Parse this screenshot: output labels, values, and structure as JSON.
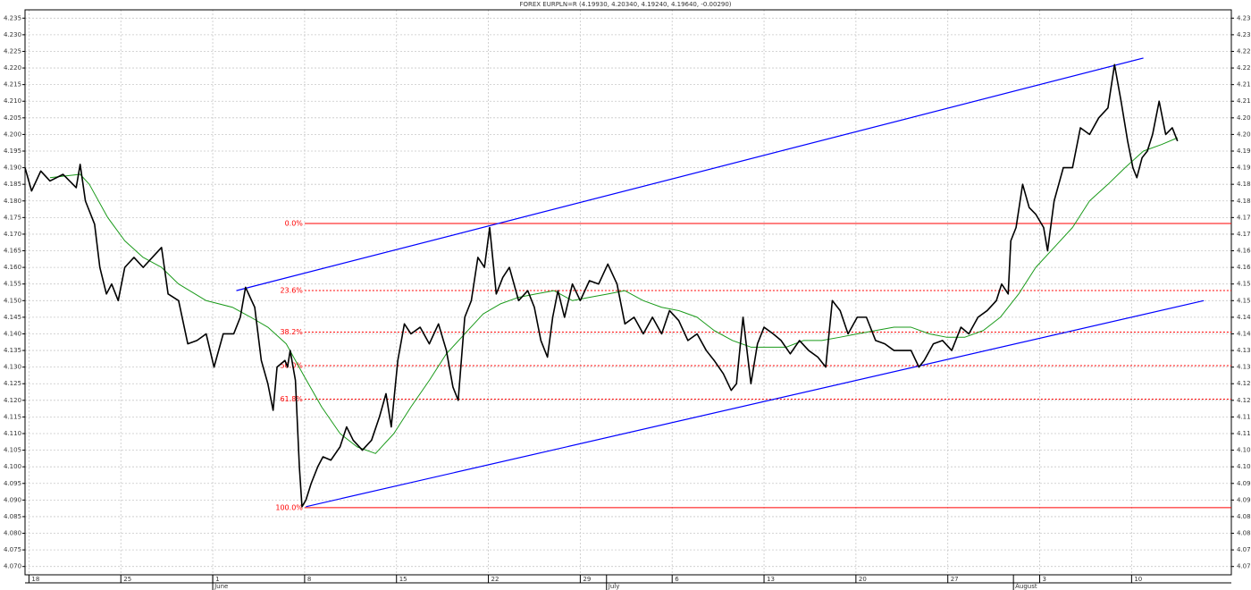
{
  "chart_data": {
    "type": "line",
    "title": "FOREX EURPLN=R (4.19930, 4.20340, 4.19240, 4.19640, -0.00290)",
    "grid": true,
    "xlim": [
      -0.3,
      91.6
    ],
    "ylim": [
      4.0675,
      4.2375
    ],
    "xticks": [
      {
        "value": 0,
        "label": "18"
      },
      {
        "value": 7,
        "label": "25"
      },
      {
        "value": 14,
        "label": "1"
      },
      {
        "value": 21,
        "label": "8"
      },
      {
        "value": 28,
        "label": "15"
      },
      {
        "value": 35,
        "label": "22"
      },
      {
        "value": 42,
        "label": "29"
      },
      {
        "value": 49,
        "label": "6"
      },
      {
        "value": 56,
        "label": "13"
      },
      {
        "value": 63,
        "label": "20"
      },
      {
        "value": 70,
        "label": "27"
      },
      {
        "value": 77,
        "label": "3"
      },
      {
        "value": 84,
        "label": "10"
      }
    ],
    "month_labels": [
      {
        "value": 14,
        "label": "June"
      },
      {
        "value": 44,
        "label": "July"
      },
      {
        "value": 75,
        "label": "August"
      }
    ],
    "yticks": [
      {
        "value": 4.07,
        "label": "4.070"
      },
      {
        "value": 4.075,
        "label": "4.075"
      },
      {
        "value": 4.08,
        "label": "4.080"
      },
      {
        "value": 4.085,
        "label": "4.085"
      },
      {
        "value": 4.09,
        "label": "4.090"
      },
      {
        "value": 4.095,
        "label": "4.095"
      },
      {
        "value": 4.1,
        "label": "4.100"
      },
      {
        "value": 4.105,
        "label": "4.105"
      },
      {
        "value": 4.11,
        "label": "4.110"
      },
      {
        "value": 4.115,
        "label": "4.115"
      },
      {
        "value": 4.12,
        "label": "4.120"
      },
      {
        "value": 4.125,
        "label": "4.125"
      },
      {
        "value": 4.13,
        "label": "4.130"
      },
      {
        "value": 4.135,
        "label": "4.135"
      },
      {
        "value": 4.14,
        "label": "4.140"
      },
      {
        "value": 4.145,
        "label": "4.145"
      },
      {
        "value": 4.15,
        "label": "4.150"
      },
      {
        "value": 4.155,
        "label": "4.155"
      },
      {
        "value": 4.16,
        "label": "4.160"
      },
      {
        "value": 4.165,
        "label": "4.165"
      },
      {
        "value": 4.17,
        "label": "4.170"
      },
      {
        "value": 4.175,
        "label": "4.175"
      },
      {
        "value": 4.18,
        "label": "4.180"
      },
      {
        "value": 4.185,
        "label": "4.185"
      },
      {
        "value": 4.19,
        "label": "4.190"
      },
      {
        "value": 4.195,
        "label": "4.195"
      },
      {
        "value": 4.2,
        "label": "4.200"
      },
      {
        "value": 4.205,
        "label": "4.205"
      },
      {
        "value": 4.21,
        "label": "4.210"
      },
      {
        "value": 4.215,
        "label": "4.215"
      },
      {
        "value": 4.22,
        "label": "4.220"
      },
      {
        "value": 4.225,
        "label": "4.225"
      },
      {
        "value": 4.23,
        "label": "4.230"
      },
      {
        "value": 4.235,
        "label": "4.235"
      }
    ],
    "series": [
      {
        "color": "#000000",
        "x": [
          -0.3,
          0.2,
          0.9,
          1.6,
          2.6,
          3.6,
          3.9,
          4.3,
          5.0,
          5.4,
          5.9,
          6.3,
          6.8,
          7.3,
          8.0,
          8.7,
          9.4,
          10.1,
          10.6,
          11.4,
          12.1,
          12.8,
          13.5,
          14.1,
          14.8,
          15.6,
          16.1,
          16.5,
          17.2,
          17.7,
          18.2,
          18.6,
          18.9,
          19.5,
          19.7,
          19.9,
          20.3,
          20.6,
          20.8,
          21.1,
          21.5,
          22.0,
          22.4,
          23.0,
          23.7,
          24.2,
          24.7,
          25.4,
          26.1,
          26.7,
          27.2,
          27.6,
          28.1,
          28.6,
          29.1,
          29.8,
          30.5,
          31.2,
          31.8,
          32.3,
          32.7,
          33.2,
          33.7,
          34.2,
          34.7,
          35.1,
          35.6,
          36.1,
          36.6,
          37.3,
          38.0,
          38.5,
          39.0,
          39.5,
          39.9,
          40.3,
          40.8,
          41.4,
          42.0,
          42.7,
          43.4,
          44.1,
          44.8,
          45.4,
          46.1,
          46.8,
          47.5,
          48.2,
          48.8,
          49.5,
          50.2,
          50.9,
          51.6,
          52.2,
          52.9,
          53.5,
          53.9,
          54.4,
          55.0,
          55.5,
          56.0,
          56.7,
          57.3,
          58.0,
          58.7,
          59.4,
          60.1,
          60.7,
          61.2,
          61.8,
          62.4,
          63.1,
          63.8,
          64.5,
          65.2,
          65.9,
          66.5,
          67.2,
          67.8,
          68.2,
          68.9,
          69.6,
          70.3,
          71.0,
          71.6,
          72.3,
          73.0,
          73.7,
          74.1,
          74.6,
          74.8,
          75.2,
          75.7,
          76.2,
          76.7,
          77.3,
          77.6,
          78.1,
          78.8,
          79.5,
          80.1,
          80.8,
          81.5,
          82.2,
          82.7,
          83.2,
          83.7,
          84.1,
          84.4,
          84.8,
          85.2,
          85.6,
          86.1,
          86.6,
          87.1,
          87.5
        ],
        "values": [
          4.19,
          4.183,
          4.189,
          4.186,
          4.188,
          4.184,
          4.191,
          4.18,
          4.173,
          4.16,
          4.152,
          4.155,
          4.15,
          4.16,
          4.163,
          4.16,
          4.163,
          4.166,
          4.152,
          4.15,
          4.137,
          4.138,
          4.14,
          4.13,
          4.14,
          4.14,
          4.145,
          4.154,
          4.148,
          4.132,
          4.125,
          4.117,
          4.13,
          4.132,
          4.13,
          4.135,
          4.126,
          4.1,
          4.088,
          4.09,
          4.095,
          4.1,
          4.103,
          4.102,
          4.106,
          4.112,
          4.108,
          4.105,
          4.108,
          4.115,
          4.122,
          4.112,
          4.132,
          4.143,
          4.14,
          4.142,
          4.137,
          4.143,
          4.135,
          4.124,
          4.12,
          4.145,
          4.15,
          4.163,
          4.16,
          4.172,
          4.152,
          4.157,
          4.16,
          4.15,
          4.153,
          4.148,
          4.138,
          4.133,
          4.145,
          4.153,
          4.145,
          4.155,
          4.15,
          4.156,
          4.155,
          4.161,
          4.155,
          4.143,
          4.145,
          4.14,
          4.145,
          4.14,
          4.147,
          4.144,
          4.138,
          4.14,
          4.135,
          4.132,
          4.128,
          4.123,
          4.125,
          4.145,
          4.125,
          4.137,
          4.142,
          4.14,
          4.138,
          4.134,
          4.138,
          4.135,
          4.133,
          4.13,
          4.15,
          4.147,
          4.14,
          4.145,
          4.145,
          4.138,
          4.137,
          4.135,
          4.135,
          4.135,
          4.13,
          4.132,
          4.137,
          4.138,
          4.135,
          4.142,
          4.14,
          4.145,
          4.147,
          4.15,
          4.155,
          4.152,
          4.168,
          4.172,
          4.185,
          4.178,
          4.176,
          4.172,
          4.165,
          4.18,
          4.19,
          4.19,
          4.202,
          4.2,
          4.205,
          4.208,
          4.221,
          4.21,
          4.198,
          4.19,
          4.187,
          4.193,
          4.195,
          4.2,
          4.21,
          4.2,
          4.202,
          4.198
        ]
      },
      {
        "color": "#1a9a1a",
        "x": [
          1.6,
          3.9,
          4.6,
          6.0,
          7.3,
          8.7,
          10.1,
          11.4,
          13.5,
          15.5,
          16.9,
          18.2,
          19.6,
          21.0,
          22.3,
          23.7,
          25.0,
          26.4,
          27.8,
          29.1,
          30.5,
          31.8,
          33.2,
          34.6,
          35.9,
          37.3,
          38.6,
          40.0,
          41.4,
          42.7,
          44.1,
          45.4,
          46.8,
          48.2,
          49.5,
          50.9,
          52.2,
          53.6,
          55.0,
          56.3,
          57.7,
          59.0,
          60.4,
          61.8,
          63.1,
          64.5,
          65.9,
          67.2,
          68.6,
          69.9,
          71.3,
          72.7,
          74.0,
          75.4,
          76.7,
          78.1,
          79.5,
          80.8,
          82.2,
          83.5,
          84.9,
          86.3,
          87.5
        ],
        "values": [
          4.187,
          4.188,
          4.185,
          4.175,
          4.168,
          4.163,
          4.16,
          4.155,
          4.15,
          4.148,
          4.145,
          4.142,
          4.137,
          4.127,
          4.118,
          4.11,
          4.106,
          4.104,
          4.11,
          4.118,
          4.126,
          4.134,
          4.14,
          4.146,
          4.149,
          4.151,
          4.152,
          4.153,
          4.15,
          4.151,
          4.152,
          4.153,
          4.15,
          4.148,
          4.147,
          4.145,
          4.141,
          4.138,
          4.136,
          4.136,
          4.136,
          4.138,
          4.138,
          4.139,
          4.14,
          4.141,
          4.142,
          4.142,
          4.14,
          4.139,
          4.139,
          4.141,
          4.145,
          4.152,
          4.16,
          4.166,
          4.172,
          4.18,
          4.185,
          4.19,
          4.195,
          4.197,
          4.199
        ]
      }
    ],
    "trend_lines": [
      {
        "color": "#0000ff",
        "x": [
          15.8,
          84.9
        ],
        "y": [
          4.153,
          4.223
        ]
      },
      {
        "color": "#0000ff",
        "x": [
          21.1,
          89.5
        ],
        "y": [
          4.088,
          4.15
        ]
      }
    ],
    "fibonacci": {
      "color": "#ff0000",
      "x_start": 21.0,
      "high": 4.1732,
      "low": 4.0877,
      "levels": [
        {
          "value": 0,
          "label": "0.0%",
          "style": "solid"
        },
        {
          "value": 23.6,
          "label": "23.6%",
          "style": "dotted"
        },
        {
          "value": 38.2,
          "label": "38.2%",
          "style": "dotted"
        },
        {
          "value": 50,
          "label": "50.0%",
          "style": "dotted"
        },
        {
          "value": 61.8,
          "label": "61.8%",
          "style": "dotted"
        },
        {
          "value": 100,
          "label": "100.0%",
          "style": "solid"
        }
      ]
    }
  }
}
